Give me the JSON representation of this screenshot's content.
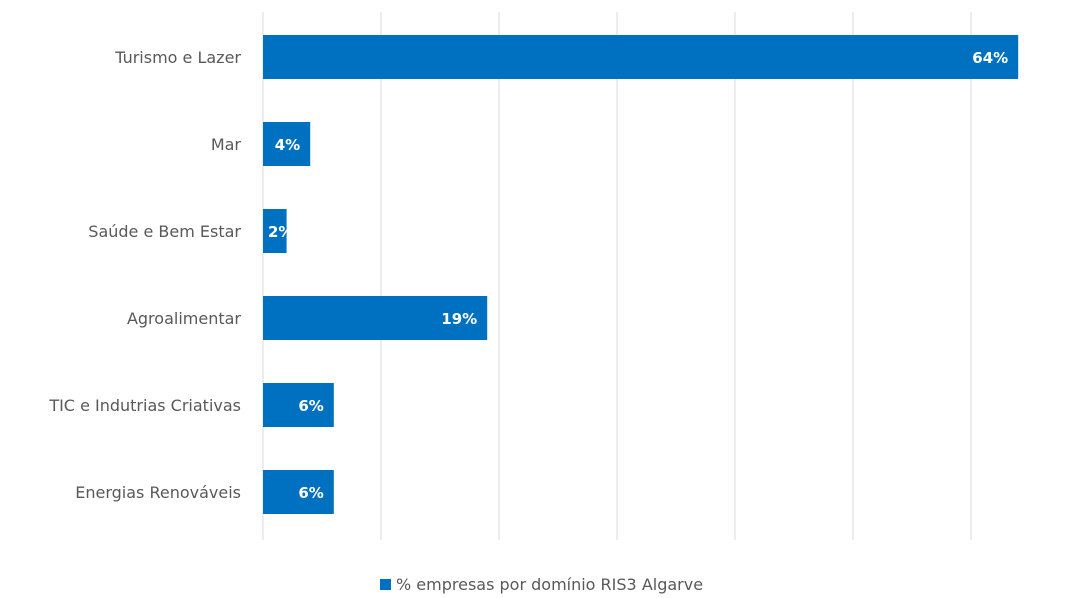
{
  "chart_data": {
    "type": "bar",
    "orientation": "horizontal",
    "categories": [
      "Turismo e Lazer",
      "Mar",
      "Saúde e Bem Estar",
      "Agroalimentar",
      "TIC e Indutrias Criativas",
      "Energias Renováveis"
    ],
    "series": [
      {
        "name": "% empresas por domínio RIS3 Algarve",
        "values": [
          64,
          4,
          2,
          19,
          6,
          6
        ],
        "data_labels": [
          "64%",
          "4%",
          "2%",
          "19%",
          "6%",
          "6%"
        ],
        "color": "#0070c0"
      }
    ],
    "xlim": [
      0,
      70
    ],
    "grid": true,
    "legend": "bottom"
  }
}
